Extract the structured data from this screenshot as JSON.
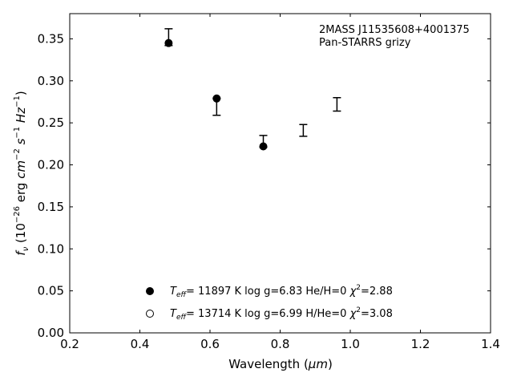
{
  "chart_data": {
    "type": "scatter",
    "annotation": [
      "2MASS J11535608+4001375",
      "Pan-STARRS grizy"
    ],
    "xlabel": {
      "text": "Wavelength (",
      "unit": "μm",
      "close": ")"
    },
    "ylabel": {
      "f": "f",
      "nu": "ν",
      "open": " (10",
      "exp1": "−26",
      "erg": " erg ",
      "cm": "cm",
      "exp2": "−2",
      "s": " s",
      "exp3": "−1",
      "hz": " Hz",
      "exp4": "−1",
      "close": ")"
    },
    "xlim": [
      0.2,
      1.4
    ],
    "ylim": [
      0.0,
      0.38
    ],
    "xticks": [
      0.2,
      0.4,
      0.6,
      0.8,
      1.0,
      1.2,
      1.4
    ],
    "xtick_labels": [
      "0.2",
      "0.4",
      "0.6",
      "0.8",
      "1.0",
      "1.2",
      "1.4"
    ],
    "yticks": [
      0.0,
      0.05,
      0.1,
      0.15,
      0.2,
      0.25,
      0.3,
      0.35
    ],
    "ytick_labels": [
      "0.00",
      "0.05",
      "0.10",
      "0.15",
      "0.20",
      "0.25",
      "0.30",
      "0.35"
    ],
    "grid": false,
    "legend_position": "lower-center",
    "observed": {
      "x": [
        0.482,
        0.619,
        0.752,
        0.866,
        0.962
      ],
      "y": [
        0.352,
        0.269,
        0.228,
        0.241,
        0.272
      ],
      "yerr": [
        0.01,
        0.01,
        0.007,
        0.007,
        0.008
      ]
    },
    "series": [
      {
        "marker": "filled-circle",
        "color": "#000000",
        "x": [
          0.482,
          0.619,
          0.752
        ],
        "y": [
          0.345,
          0.279,
          0.222
        ],
        "legend": {
          "T": "T",
          "sub": "eff",
          "text": "= 11897 K  log g=6.83  He/H=0  ",
          "chi": "χ",
          "exp": "2",
          "val": "=2.88"
        }
      },
      {
        "marker": "open-circle",
        "color": "#000000",
        "x": [],
        "y": [],
        "legend": {
          "T": "T",
          "sub": "eff",
          "text": "= 13714 K  log g=6.99  H/He=0  ",
          "chi": "χ",
          "exp": "2",
          "val": "=3.08"
        }
      }
    ]
  }
}
